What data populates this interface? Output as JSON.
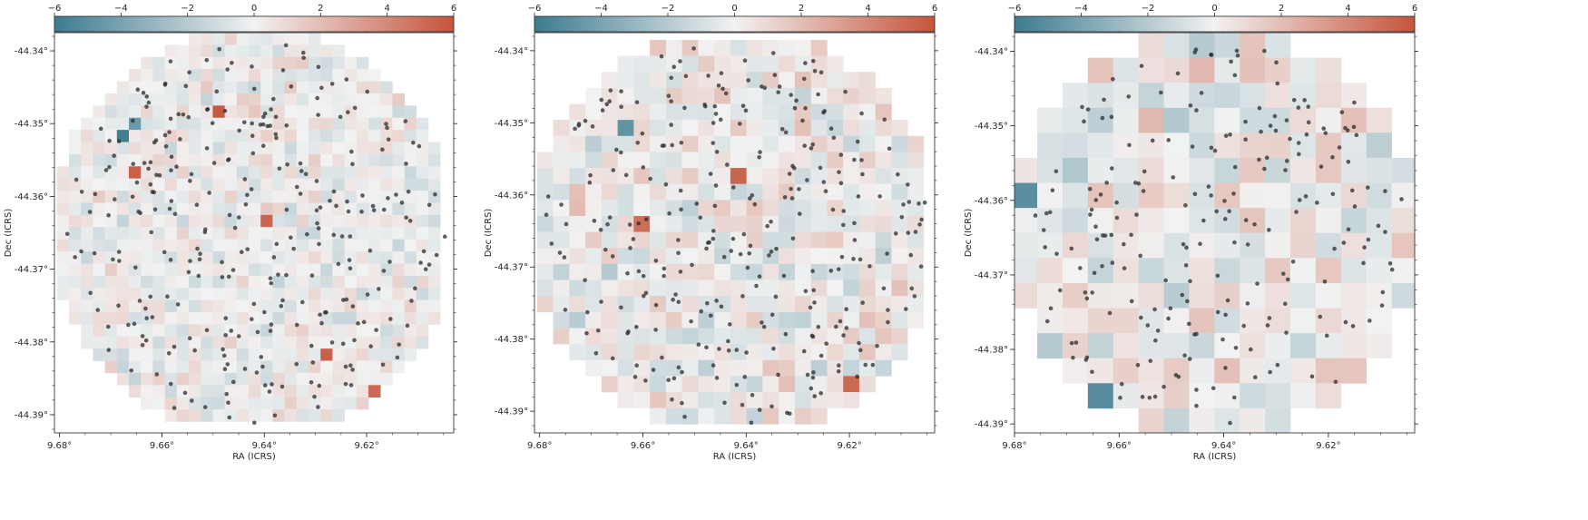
{
  "figure": {
    "background": "#ffffff"
  },
  "colormap": {
    "low": "#3d7b8f",
    "mid": "#f2f2f2",
    "high": "#c5543a"
  },
  "chart_data": [
    {
      "type": "heatmap",
      "title": "",
      "xlabel": "RA (ICRS)",
      "ylabel": "Dec (ICRS)",
      "xlim": [
        9.681,
        9.603
      ],
      "ylim": [
        -44.3925,
        -44.3375
      ],
      "x_ticks": [
        {
          "value": 9.68,
          "label": "9.68°"
        },
        {
          "value": 9.66,
          "label": "9.66°"
        },
        {
          "value": 9.64,
          "label": "9.64°"
        },
        {
          "value": 9.62,
          "label": "9.62°"
        }
      ],
      "y_ticks": [
        {
          "value": -44.34,
          "label": "-44.34°"
        },
        {
          "value": -44.35,
          "label": "-44.35°"
        },
        {
          "value": -44.36,
          "label": "-44.36°"
        },
        {
          "value": -44.37,
          "label": "-44.37°"
        },
        {
          "value": -44.38,
          "label": "-44.38°"
        },
        {
          "value": -44.39,
          "label": "-44.39°"
        }
      ],
      "colorbar": {
        "range": [
          -6,
          6
        ],
        "ticks": [
          -6,
          -4,
          -2,
          0,
          2,
          4,
          6
        ],
        "labels": [
          "−6",
          "−4",
          "−2",
          "0",
          "2",
          "4",
          "6"
        ],
        "position": "top"
      },
      "grid": false,
      "pixel_grid": {
        "nx": 32,
        "ny": 32,
        "ra_start": 9.6805,
        "dec_start": -44.3375,
        "d_ra": 0.00234,
        "d_dec": 0.00167
      },
      "noise_amplitude": 1.0,
      "extreme_pixels": [
        {
          "ra": 9.6665,
          "dec": -44.3525,
          "value": -5.8
        },
        {
          "ra": 9.6645,
          "dec": -44.3508,
          "value": -4.5
        },
        {
          "ra": 9.6645,
          "dec": -44.3567,
          "value": 5.5
        },
        {
          "ra": 9.6495,
          "dec": -44.3488,
          "value": 5.8
        },
        {
          "ra": 9.6395,
          "dec": -44.3639,
          "value": 5.3
        },
        {
          "ra": 9.6275,
          "dec": -44.3822,
          "value": 5.5
        },
        {
          "ra": 9.6195,
          "dec": -44.3872,
          "value": 5.2
        }
      ],
      "sources_count": 300,
      "source_color": "#2b2b2b"
    },
    {
      "type": "heatmap",
      "title": "",
      "xlabel": "RA (ICRS)",
      "ylabel": "Dec (ICRS)",
      "xlim": [
        9.681,
        9.6035
      ],
      "ylim": [
        -44.393,
        -44.3375
      ],
      "x_ticks": [
        {
          "value": 9.68,
          "label": "9.68°"
        },
        {
          "value": 9.66,
          "label": "9.66°"
        },
        {
          "value": 9.64,
          "label": "9.64°"
        },
        {
          "value": 9.62,
          "label": "9.62°"
        }
      ],
      "y_ticks": [
        {
          "value": -44.34,
          "label": "-44.34°"
        },
        {
          "value": -44.35,
          "label": "-44.35°"
        },
        {
          "value": -44.36,
          "label": "-44.36°"
        },
        {
          "value": -44.37,
          "label": "-44.37°"
        },
        {
          "value": -44.38,
          "label": "-44.38°"
        },
        {
          "value": -44.39,
          "label": "-44.39°"
        }
      ],
      "colorbar": {
        "range": [
          -6,
          6
        ],
        "ticks": [
          -6,
          -4,
          -2,
          0,
          2,
          4,
          6
        ],
        "labels": [
          "−6",
          "−4",
          "−2",
          "0",
          "2",
          "4",
          "6"
        ],
        "position": "top"
      },
      "grid": false,
      "pixel_grid": {
        "nx": 24,
        "ny": 24,
        "ra_start": 9.6805,
        "dec_start": -44.3385,
        "d_ra": 0.00312,
        "d_dec": 0.00222
      },
      "noise_amplitude": 1.3,
      "extreme_pixels": [
        {
          "ra": 9.6635,
          "dec": -44.3502,
          "value": -4.8
        },
        {
          "ra": 9.6402,
          "dec": -44.3569,
          "value": 5.3
        },
        {
          "ra": 9.6592,
          "dec": -44.3636,
          "value": 5.0
        },
        {
          "ra": 9.6185,
          "dec": -44.387,
          "value": 5.2
        }
      ],
      "sources_count": 300,
      "source_color": "#2b2b2b"
    },
    {
      "type": "heatmap",
      "title": "",
      "xlabel": "RA (ICRS)",
      "ylabel": "Dec (ICRS)",
      "xlim": [
        9.68,
        9.6035
      ],
      "ylim": [
        -44.3912,
        -44.3375
      ],
      "x_ticks": [
        {
          "value": 9.68,
          "label": "9.68°"
        },
        {
          "value": 9.66,
          "label": "9.66°"
        },
        {
          "value": 9.64,
          "label": "9.64°"
        },
        {
          "value": 9.62,
          "label": "9.62°"
        }
      ],
      "y_ticks": [
        {
          "value": -44.34,
          "label": "-44.34°"
        },
        {
          "value": -44.35,
          "label": "-44.35°"
        },
        {
          "value": -44.36,
          "label": "-44.36°"
        },
        {
          "value": -44.37,
          "label": "-44.37°"
        },
        {
          "value": -44.38,
          "label": "-44.38°"
        },
        {
          "value": -44.39,
          "label": "-44.39°"
        }
      ],
      "colorbar": {
        "range": [
          -6,
          6
        ],
        "ticks": [
          -6,
          -4,
          -2,
          0,
          2,
          4,
          6
        ],
        "labels": [
          "−6",
          "−4",
          "−2",
          "0",
          "2",
          "4",
          "6"
        ],
        "position": "top"
      },
      "grid": false,
      "pixel_grid": {
        "nx": 16,
        "ny": 16,
        "ra_start": 9.6805,
        "dec_start": -44.3375,
        "d_ra": 0.00484,
        "d_dec": 0.00336
      },
      "noise_amplitude": 1.5,
      "extreme_pixels": [
        {
          "ra": 9.678,
          "dec": -44.359,
          "value": -5.0
        },
        {
          "ra": 9.605,
          "dec": -44.376,
          "value": 5.0
        },
        {
          "ra": 9.6635,
          "dec": -44.386,
          "value": -5.2
        },
        {
          "ra": 9.615,
          "dec": -44.386,
          "value": 5.3
        },
        {
          "ra": 9.6205,
          "dec": -44.3895,
          "value": 5.3
        }
      ],
      "sources_count": 220,
      "source_color": "#2b2b2b"
    }
  ]
}
